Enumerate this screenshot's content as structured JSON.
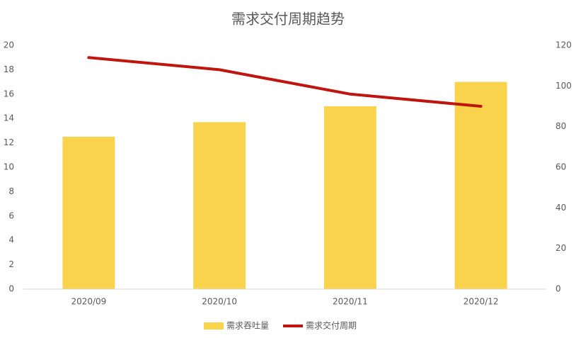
{
  "chart_data": {
    "type": "bar-line",
    "title": "需求交付周期趋势",
    "categories": [
      "2020/09",
      "2020/10",
      "2020/11",
      "2020/12"
    ],
    "series": [
      {
        "name": "需求吞吐量",
        "type": "bar",
        "color": "#f9d34c",
        "values": [
          12.5,
          13.7,
          15.0,
          17.0
        ]
      },
      {
        "name": "需求交付周期",
        "type": "line",
        "axis": "y2",
        "color": "#c0150f",
        "values": [
          114,
          108,
          96,
          90
        ]
      }
    ],
    "ylim": [
      0,
      20
    ],
    "yticks": [
      0,
      2,
      4,
      6,
      8,
      10,
      12,
      14,
      16,
      18,
      20
    ],
    "y2lim": [
      0,
      120
    ],
    "y2ticks": [
      0,
      20,
      40,
      60,
      80,
      100,
      120
    ],
    "grid": false,
    "legend": "bottom"
  }
}
